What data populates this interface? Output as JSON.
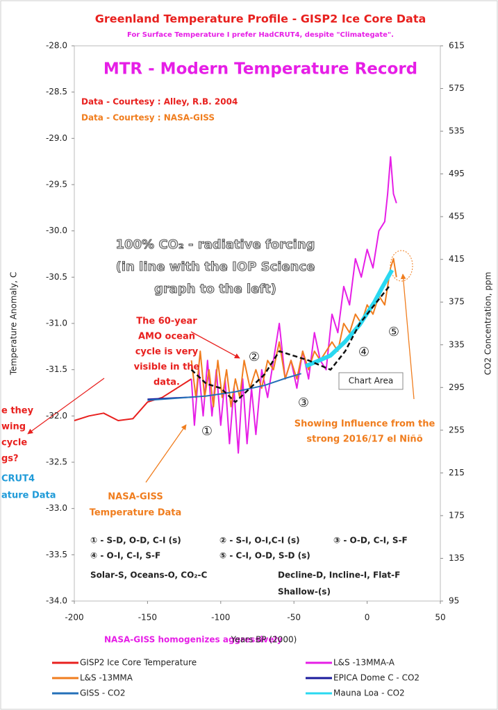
{
  "chart_data": {
    "type": "line",
    "title": "Greenland Temperature Profile - GISP2 Ice Core Data",
    "subtitle": "For Surface Temperature I prefer HadCRUT4, despite \"Climategate\".",
    "heading": "MTR - Modern Temperature Record",
    "credits": [
      "Data - Courtesy : Alley, R.B. 2004",
      "Data - Courtesy : NASA-GISS"
    ],
    "forcing_note": [
      "100% CO₂  - radiative forcing",
      "(in line with the IOP Science",
      "graph to the left)"
    ],
    "amo_note": [
      "The 60-year",
      "AMO ocean",
      "cycle is very",
      "visible in the",
      "data."
    ],
    "left_fragments": [
      "e they",
      "wing",
      "cycle",
      "gs?",
      "CRUT4",
      "ature Data"
    ],
    "chart_area_label": "Chart Area",
    "nino_note": [
      "Showing Influence from the",
      "strong 2016/17 el Niñõ"
    ],
    "giss_note": [
      "NASA-GISS",
      "Temperature Data"
    ],
    "markers": [
      "①",
      "②",
      "③",
      "④",
      "⑤"
    ],
    "key": [
      "① - S-D, O-D, C-I (s)",
      "② - S-I, O-I,C-I (s)",
      "③ - O-D, C-I, S-F",
      "④ - O-I, C-I, S-F",
      "⑤ - C-I, O-D, S-D (s)",
      "Solar-S, Oceans-O, CO₂-C",
      "Decline-D, Incline-I, Flat-F",
      "Shallow-(s)"
    ],
    "footnote": "NASA-GISS homogenizes aggressively",
    "xlabel": "Years BP (2000)",
    "ylabel": "Temperature Anomaly, C",
    "y2label": "CO2 Concentration, ppm",
    "xlim": [
      -200,
      50
    ],
    "xticks": [
      -200,
      -150,
      -100,
      -50,
      0,
      50
    ],
    "ylim": [
      -34,
      -28
    ],
    "yticks": [
      {
        "value": -34,
        "label": "-34.0"
      },
      -33.5,
      {
        "value": -33,
        "label": "-33.0"
      },
      -32.5,
      {
        "value": -32,
        "label": "-32.0"
      },
      -31.5,
      {
        "value": -31,
        "label": "-31.0"
      },
      -30.5,
      {
        "value": -30,
        "label": "-30.0"
      },
      -29.5,
      {
        "value": -29,
        "label": "-29.0"
      },
      -28.5,
      {
        "value": -28,
        "label": "-28.0"
      }
    ],
    "y2lim": [
      95,
      615
    ],
    "y2ticks": [
      95,
      135,
      175,
      215,
      255,
      295,
      335,
      375,
      415,
      455,
      495,
      535,
      575,
      615
    ],
    "series": [
      {
        "name": "GISP2 Ice Core Temperature",
        "color": "#e8201e",
        "x": [
          -200,
          -190,
          -180,
          -170,
          -160,
          -150,
          -140,
          -130,
          -120
        ],
        "values": [
          -32.05,
          -32.0,
          -31.97,
          -32.05,
          -32.03,
          -31.85,
          -31.8,
          -31.7,
          -31.6
        ]
      },
      {
        "name": "L&S -13MMA-A",
        "color": "#e61ee6",
        "x": [
          -120,
          -118,
          -115,
          -112,
          -109,
          -106,
          -103,
          -100,
          -97,
          -94,
          -91,
          -88,
          -85,
          -82,
          -79,
          -76,
          -72,
          -68,
          -64,
          -60,
          -56,
          -52,
          -48,
          -44,
          -40,
          -36,
          -32,
          -28,
          -24,
          -20,
          -16,
          -12,
          -8,
          -4,
          0,
          4,
          8,
          12,
          14,
          16,
          18,
          20
        ],
        "values": [
          -31.6,
          -32.1,
          -31.5,
          -32.0,
          -31.4,
          -32.0,
          -31.5,
          -32.1,
          -31.6,
          -32.3,
          -31.7,
          -32.4,
          -31.6,
          -32.3,
          -31.7,
          -32.2,
          -31.5,
          -31.8,
          -31.4,
          -31.0,
          -31.6,
          -31.4,
          -31.7,
          -31.3,
          -31.6,
          -31.1,
          -31.4,
          -31.5,
          -30.9,
          -31.1,
          -30.6,
          -30.8,
          -30.3,
          -30.5,
          -30.2,
          -30.4,
          -30.0,
          -29.9,
          -29.6,
          -29.2,
          -29.6,
          -29.7
        ]
      },
      {
        "name": "L&S -13MMA",
        "color": "#f07d1e",
        "x": [
          -120,
          -117,
          -114,
          -111,
          -108,
          -105,
          -102,
          -99,
          -96,
          -93,
          -90,
          -87,
          -84,
          -80,
          -76,
          -72,
          -68,
          -64,
          -60,
          -56,
          -52,
          -48,
          -44,
          -40,
          -36,
          -32,
          -28,
          -24,
          -20,
          -16,
          -12,
          -8,
          -4,
          0,
          4,
          8,
          12,
          16,
          18,
          20
        ],
        "values": [
          -31.4,
          -31.8,
          -31.3,
          -31.8,
          -31.5,
          -31.9,
          -31.4,
          -31.8,
          -31.5,
          -31.9,
          -31.6,
          -31.8,
          -31.4,
          -31.7,
          -31.5,
          -31.7,
          -31.4,
          -31.5,
          -31.2,
          -31.6,
          -31.4,
          -31.6,
          -31.3,
          -31.5,
          -31.3,
          -31.4,
          -31.3,
          -31.2,
          -31.3,
          -31.0,
          -31.1,
          -30.9,
          -31.0,
          -30.8,
          -30.9,
          -30.7,
          -30.8,
          -30.4,
          -30.3,
          -30.5
        ]
      },
      {
        "name": "EPICA Dome C - CO2",
        "color": "#1a1a9c",
        "axis": "y2",
        "x": [
          -150,
          -135,
          -120
        ],
        "values": [
          284,
          285,
          286
        ]
      },
      {
        "name": "GISS - CO2",
        "color": "#2470b8",
        "axis": "y2",
        "x": [
          -150,
          -130,
          -110,
          -90,
          -70,
          -55,
          -45
        ],
        "values": [
          283,
          285,
          287,
          291,
          297,
          304,
          308
        ]
      },
      {
        "name": "Mauna Loa - CO2",
        "color": "#2ad8f0",
        "axis": "y2",
        "x": [
          -42,
          -35,
          -25,
          -15,
          -5,
          5,
          10,
          17
        ],
        "values": [
          315,
          319,
          325,
          338,
          354,
          375,
          388,
          405
        ]
      }
    ],
    "trend": {
      "color": "#111111",
      "x": [
        -120,
        -110,
        -100,
        -90,
        -80,
        -70,
        -60,
        -50,
        -40,
        -25,
        -15,
        -5,
        5,
        15
      ],
      "values": [
        -31.5,
        -31.65,
        -31.7,
        -31.85,
        -31.7,
        -31.55,
        -31.3,
        -31.35,
        -31.4,
        -31.5,
        -31.3,
        -31.0,
        -30.8,
        -30.6
      ]
    }
  }
}
